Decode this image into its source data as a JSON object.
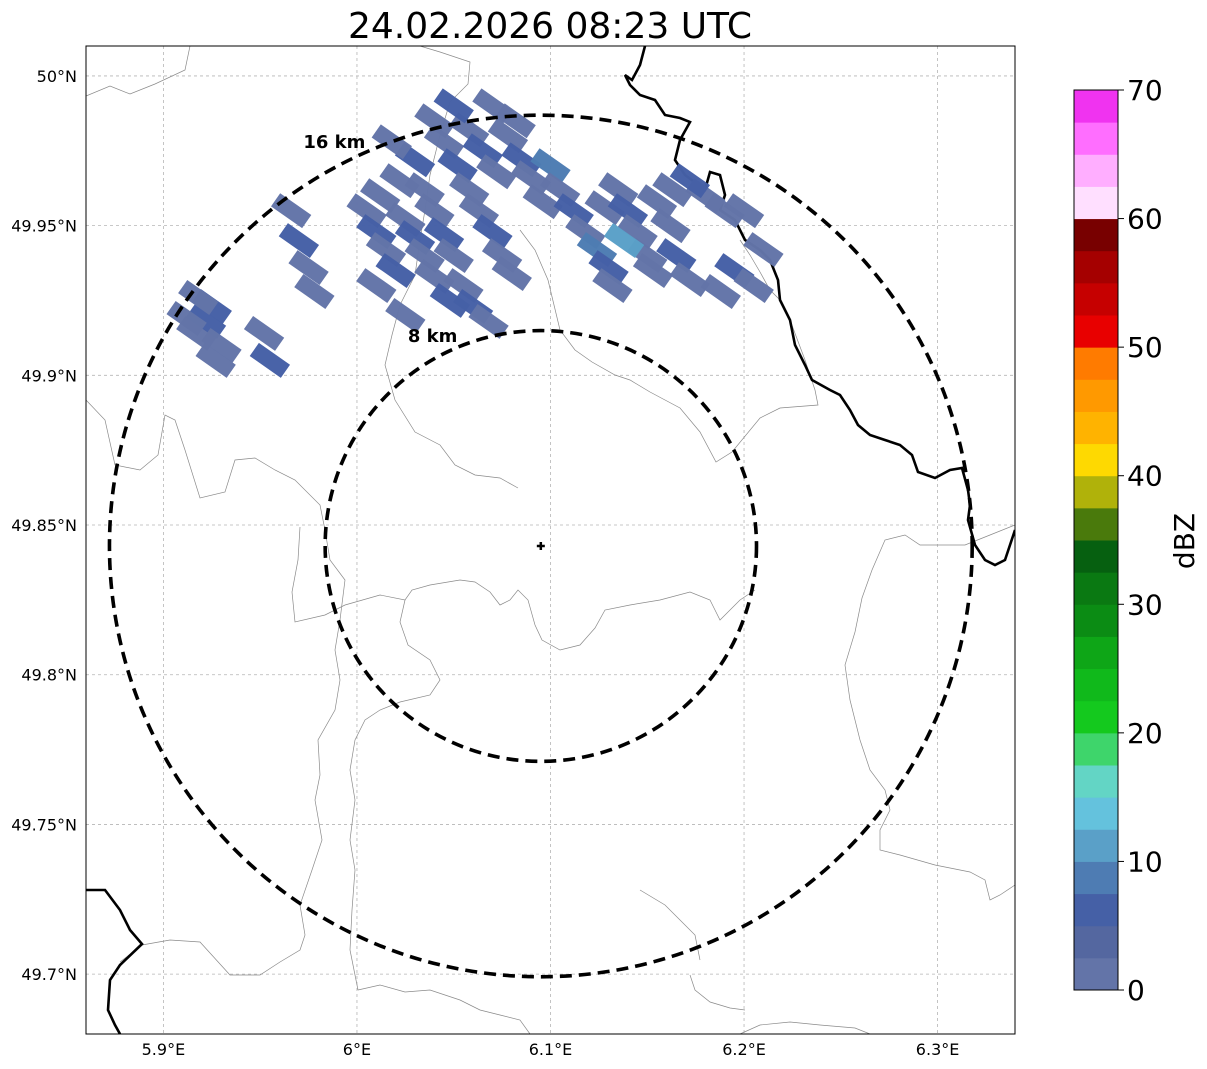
{
  "title": "24.02.2026 08:23 UTC",
  "map": {
    "lon_range": [
      5.86,
      6.34
    ],
    "lat_range": [
      49.68,
      50.01
    ],
    "lon_ticks": [
      {
        "value": 5.9,
        "label": "5.9°E"
      },
      {
        "value": 6.0,
        "label": "6°E"
      },
      {
        "value": 6.1,
        "label": "6.1°E"
      },
      {
        "value": 6.2,
        "label": "6.2°E"
      },
      {
        "value": 6.3,
        "label": "6.3°E"
      }
    ],
    "lat_ticks": [
      {
        "value": 50.0,
        "label": "50°N"
      },
      {
        "value": 49.95,
        "label": "49.95°N"
      },
      {
        "value": 49.9,
        "label": "49.9°N"
      },
      {
        "value": 49.85,
        "label": "49.85°N"
      },
      {
        "value": 49.8,
        "label": "49.8°N"
      },
      {
        "value": 49.75,
        "label": "49.75°N"
      },
      {
        "value": 49.7,
        "label": "49.7°N"
      }
    ],
    "radar_site": {
      "lon": 6.095,
      "lat": 49.843
    },
    "range_rings": [
      {
        "km": 8,
        "label": "8 km"
      },
      {
        "km": 16,
        "label": "16 km"
      }
    ]
  },
  "colorbar": {
    "label": "dBZ",
    "min": 0,
    "max": 70,
    "step": 2.5,
    "ticks": [
      0,
      10,
      20,
      30,
      40,
      50,
      60,
      70
    ],
    "colors": [
      "#6374a8",
      "#5467a0",
      "#4560a6",
      "#4e7cb3",
      "#5aa0c8",
      "#64c2dd",
      "#63d5c5",
      "#3ed56b",
      "#14c91e",
      "#10b91b",
      "#0ea617",
      "#0b8c14",
      "#0a7912",
      "#066010",
      "#4a7a0c",
      "#b0b20a",
      "#fed901",
      "#ffb300",
      "#ff9900",
      "#ff7b00",
      "#e80000",
      "#c60000",
      "#a50000",
      "#780000",
      "#ffdfff",
      "#ffaeff",
      "#ff6eff",
      "#f033f0"
    ]
  },
  "echoes": {
    "dbz_values": [
      2,
      5,
      8,
      11
    ]
  }
}
